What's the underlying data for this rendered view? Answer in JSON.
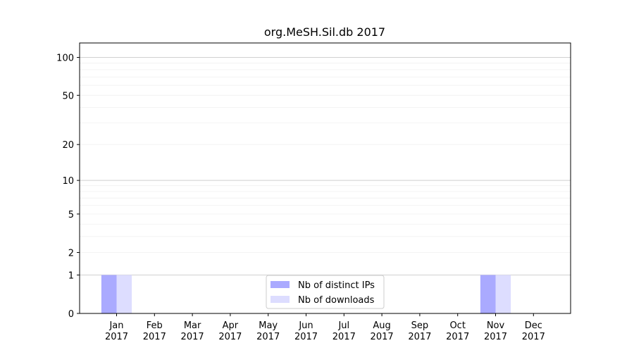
{
  "chart_data": {
    "type": "bar",
    "title": "org.MeSH.Sil.db 2017",
    "categories": [
      "Jan\n2017",
      "Feb\n2017",
      "Mar\n2017",
      "Apr\n2017",
      "May\n2017",
      "Jun\n2017",
      "Jul\n2017",
      "Aug\n2017",
      "Sep\n2017",
      "Oct\n2017",
      "Nov\n2017",
      "Dec\n2017"
    ],
    "series": [
      {
        "name": "Nb of distinct IPs",
        "values": [
          1,
          0,
          0,
          0,
          0,
          0,
          0,
          0,
          0,
          0,
          1,
          0
        ],
        "color": "#aaaaff"
      },
      {
        "name": "Nb of downloads",
        "values": [
          1,
          0,
          0,
          0,
          0,
          0,
          0,
          0,
          0,
          0,
          1,
          0
        ],
        "color": "#ddddff"
      }
    ],
    "yscale": "log(1+y)",
    "yticks": [
      0,
      1,
      2,
      5,
      10,
      20,
      50,
      100
    ],
    "ylim": [
      0,
      130
    ],
    "grid": true,
    "legend_position": "lower-center",
    "xlabel": "",
    "ylabel": ""
  }
}
